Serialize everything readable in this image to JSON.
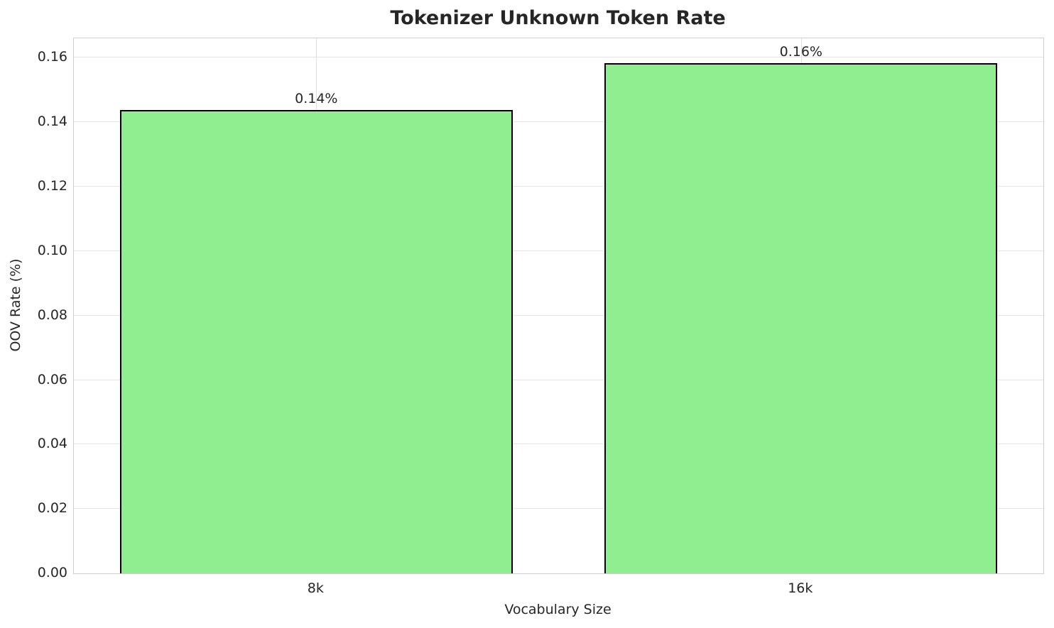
{
  "chart_data": {
    "type": "bar",
    "title": "Tokenizer Unknown Token Rate",
    "xlabel": "Vocabulary Size",
    "ylabel": "OOV Rate (%)",
    "categories": [
      "8k",
      "16k"
    ],
    "values": [
      0.1437,
      0.1584
    ],
    "bar_labels": [
      "0.14%",
      "0.16%"
    ],
    "yticks": [
      0.0,
      0.02,
      0.04,
      0.06,
      0.08,
      0.1,
      0.12,
      0.14,
      0.16
    ],
    "ytick_labels": [
      "0.00",
      "0.02",
      "0.04",
      "0.06",
      "0.08",
      "0.10",
      "0.12",
      "0.14",
      "0.16"
    ],
    "ylim": [
      0,
      0.166
    ],
    "grid": true,
    "bar_width_fraction": 0.405,
    "colors": {
      "bar_fill": "#90EE90",
      "bar_edge": "#000000",
      "grid_line": "#e4e4e4",
      "spine": "#cfcfcf",
      "text": "#262626"
    }
  }
}
